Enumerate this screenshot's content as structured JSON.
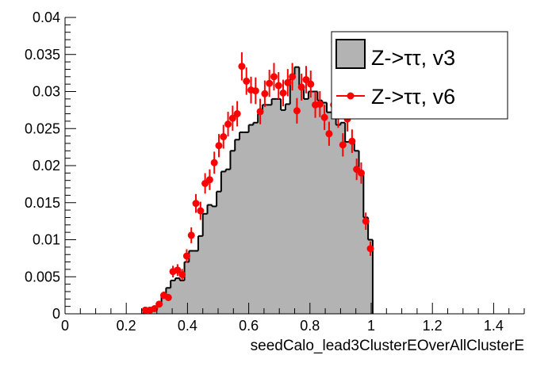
{
  "chart_data": {
    "type": "histogram",
    "title": "",
    "xlabel": "seedCalo_lead3ClusterEOverAllClusterE",
    "ylabel": "",
    "xlim": [
      0,
      1.5
    ],
    "ylim": [
      0,
      0.04
    ],
    "x_ticks": [
      "0",
      "0.2",
      "0.4",
      "0.6",
      "0.8",
      "1",
      "1.2",
      "1.4"
    ],
    "y_ticks": [
      "0",
      "0.005",
      "0.01",
      "0.015",
      "0.02",
      "0.025",
      "0.03",
      "0.035",
      "0.04"
    ],
    "legend_position": "top-right",
    "bin_width": 0.015,
    "first_bin_center": 0.2625,
    "series": [
      {
        "name": "Z->ττ, v3",
        "style": "filled-histogram",
        "fill": "#b3b3b3",
        "line": "#000000",
        "values": [
          0.0002,
          0.0003,
          0.0008,
          0.0015,
          0.0025,
          0.0035,
          0.0045,
          0.0048,
          0.0045,
          0.007,
          0.0085,
          0.0085,
          0.0105,
          0.0135,
          0.0147,
          0.0145,
          0.0165,
          0.0192,
          0.0195,
          0.022,
          0.0235,
          0.0245,
          0.0245,
          0.0255,
          0.0258,
          0.027,
          0.0282,
          0.0282,
          0.029,
          0.029,
          0.0275,
          0.0283,
          0.0322,
          0.0333,
          0.0305,
          0.029,
          0.03,
          0.03,
          0.0288,
          0.0285,
          0.0272,
          0.0272,
          0.0255,
          0.0258,
          0.0232,
          0.0232,
          0.022,
          0.019,
          0.013,
          0.01
        ]
      },
      {
        "name": "Z->ττ, v6",
        "style": "markers-errors",
        "color": "#ff0000",
        "error_scale": 0.000108,
        "values": [
          0.0005,
          0.0005,
          0.0007,
          0.0013,
          0.0025,
          0.0022,
          0.0057,
          0.0059,
          0.0053,
          0.0078,
          0.0106,
          0.0149,
          0.0139,
          0.0176,
          0.0181,
          0.0204,
          0.0227,
          0.0239,
          0.0256,
          0.0264,
          0.027,
          0.0334,
          0.0314,
          0.0302,
          0.0301,
          0.0273,
          0.0297,
          0.0311,
          0.032,
          0.0308,
          0.0298,
          0.0312,
          0.032,
          0.0274,
          0.0306,
          0.0316,
          0.031,
          0.0282,
          0.0283,
          0.0265,
          0.0243,
          0.0282,
          0.0268,
          0.0228,
          0.0263,
          0.0233,
          0.0195,
          0.019,
          0.0125,
          0.0088
        ]
      }
    ]
  }
}
